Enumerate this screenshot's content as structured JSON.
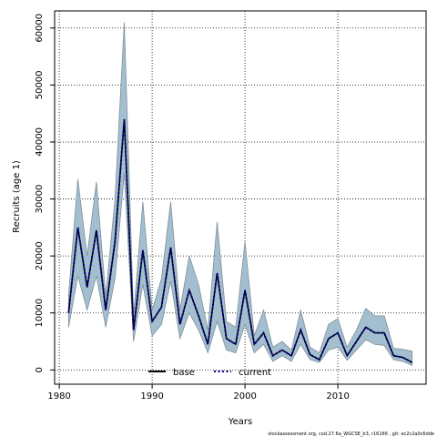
{
  "chart_data": {
    "type": "line",
    "xlabel": "Years",
    "ylabel": "Recruits (age 1)",
    "xlim": [
      1979.5,
      2019.5
    ],
    "ylim": [
      -2500,
      63000
    ],
    "x_ticks": [
      1980,
      1990,
      2000,
      2010
    ],
    "y_ticks": [
      0,
      10000,
      20000,
      30000,
      40000,
      50000,
      60000
    ],
    "grid": true,
    "legend_position": "bottom-center",
    "years": [
      1981,
      1982,
      1983,
      1984,
      1985,
      1986,
      1987,
      1988,
      1989,
      1990,
      1991,
      1992,
      1993,
      1994,
      1995,
      1996,
      1997,
      1998,
      1999,
      2000,
      2001,
      2002,
      2003,
      2004,
      2005,
      2006,
      2007,
      2008,
      2009,
      2010,
      2011,
      2012,
      2013,
      2014,
      2015,
      2016,
      2017,
      2018
    ],
    "band_upper": [
      13000,
      33500,
      20000,
      33000,
      13000,
      30000,
      61000,
      9500,
      29500,
      10500,
      16000,
      29500,
      10500,
      20000,
      15000,
      7000,
      26000,
      8500,
      7500,
      22500,
      6000,
      10500,
      4000,
      5000,
      3500,
      10500,
      4000,
      3000,
      8000,
      9000,
      4000,
      7000,
      10800,
      9500,
      9500,
      3800,
      3600,
      3300
    ],
    "band_lower": [
      7500,
      16500,
      10500,
      16500,
      7500,
      16000,
      34500,
      5000,
      15000,
      6000,
      8000,
      15500,
      5500,
      10000,
      7000,
      3000,
      8500,
      3500,
      3000,
      8000,
      3000,
      4500,
      1500,
      2500,
      1500,
      4500,
      1800,
      1300,
      3500,
      4000,
      1700,
      3500,
      5300,
      4500,
      4300,
      1800,
      1500,
      800
    ],
    "series": [
      {
        "name": "base",
        "color": "#000000",
        "style": "solid",
        "values": [
          10000,
          25000,
          14500,
          24500,
          10500,
          22500,
          44000,
          7000,
          21000,
          8500,
          11000,
          21500,
          8000,
          14000,
          9500,
          4500,
          17000,
          5500,
          4500,
          14000,
          4500,
          6500,
          2500,
          3500,
          2500,
          7000,
          2700,
          1800,
          5500,
          6500,
          2500,
          5000,
          7500,
          6500,
          6500,
          2500,
          2200,
          1300
        ]
      },
      {
        "name": "current",
        "color": "#00008b",
        "style": "dotted",
        "values": [
          10000,
          25000,
          14500,
          24500,
          10500,
          22500,
          44000,
          7000,
          21000,
          8500,
          11000,
          21500,
          8000,
          14000,
          9500,
          4500,
          17000,
          5500,
          4500,
          14000,
          4500,
          6500,
          2500,
          3500,
          2500,
          7000,
          2700,
          1800,
          5500,
          6500,
          2500,
          5000,
          7500,
          6500,
          6500,
          2500,
          2200,
          1300
        ]
      }
    ],
    "band_color": "#a3bfcf",
    "band_edge_color": "#7f8f99"
  },
  "footnote": "stockassessment.org, cod.27.6a_WGCSE_b3, r16166 , git: ec2c2a0c6dde"
}
